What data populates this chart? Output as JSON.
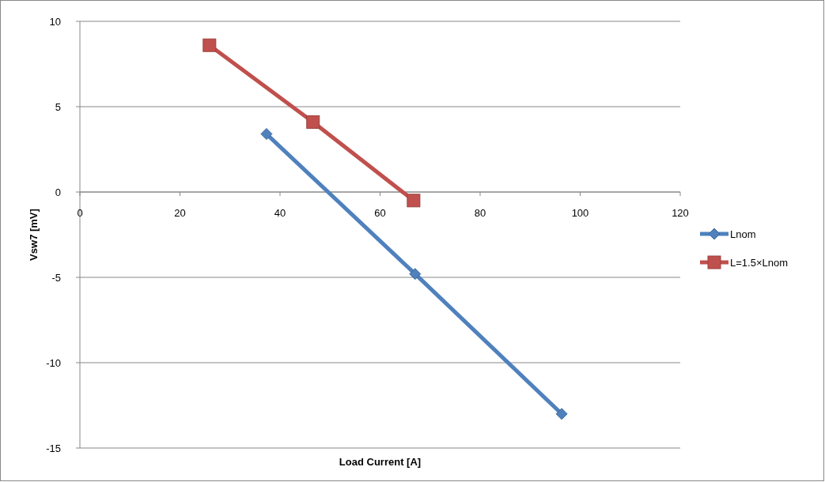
{
  "chart_data": {
    "type": "line",
    "xlabel": "Load Current [A]",
    "ylabel": "Vsw7 [mV]",
    "xlim": [
      0,
      120
    ],
    "xticks": [
      0,
      20,
      40,
      60,
      80,
      100,
      120
    ],
    "ylim": [
      -15,
      10
    ],
    "yticks": [
      -15,
      -10,
      -5,
      0,
      5,
      10
    ],
    "grid": "y",
    "legend": "right",
    "line_style": "solid",
    "series": [
      {
        "name": "Lnom",
        "color": "#4f81bd",
        "marker": "diamond",
        "x": [
          37.3,
          67.0,
          96.3
        ],
        "values": [
          3.4,
          -4.8,
          -13.0
        ]
      },
      {
        "name": "L=1.5×Lnom",
        "color": "#c0504d",
        "marker": "square",
        "x": [
          25.9,
          46.6,
          66.7
        ],
        "values": [
          8.6,
          4.1,
          -0.5
        ]
      }
    ]
  }
}
